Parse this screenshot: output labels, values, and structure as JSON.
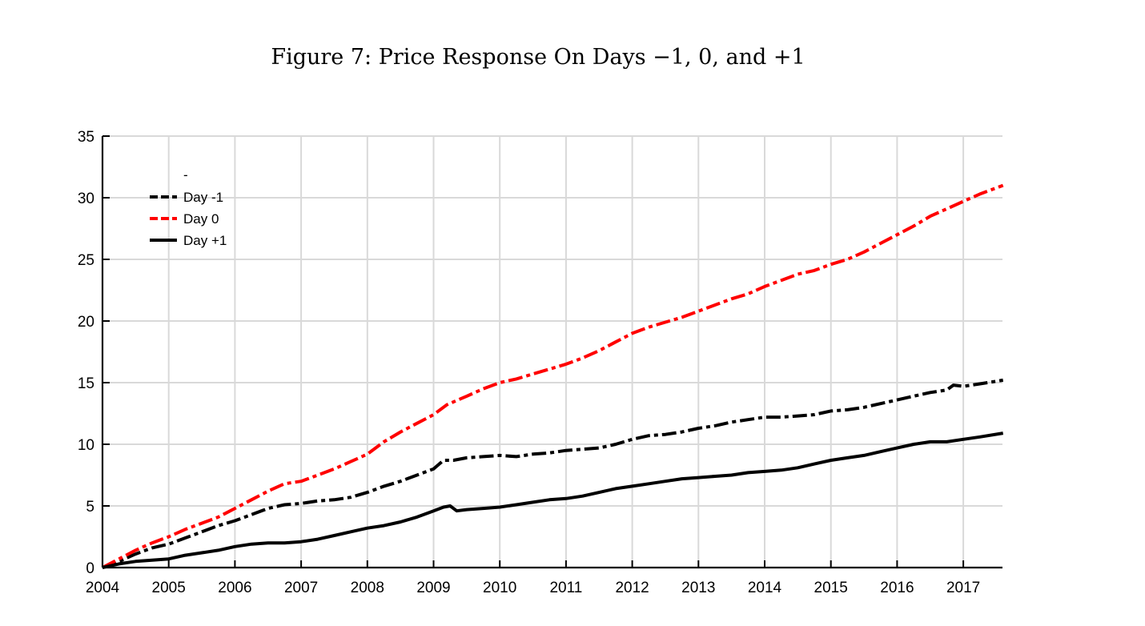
{
  "figure": {
    "title": "Figure 7: Price Response On Days −1, 0, and +1"
  },
  "chart_data": {
    "type": "line",
    "title": "Figure 7: Price Response On Days −1, 0, and +1",
    "xlabel": "",
    "ylabel": "",
    "xlim": [
      2004,
      2017.6
    ],
    "ylim": [
      0,
      35
    ],
    "xticks": [
      2004,
      2005,
      2006,
      2007,
      2008,
      2009,
      2010,
      2011,
      2012,
      2013,
      2014,
      2015,
      2016,
      2017
    ],
    "yticks": [
      0,
      5,
      10,
      15,
      20,
      25,
      30,
      35
    ],
    "grid": true,
    "legend_position": "top-left",
    "legend_header": "-",
    "series": [
      {
        "name": "Day -1",
        "color": "#000000",
        "style": "dash-dot",
        "x": [
          2004,
          2004.25,
          2004.5,
          2004.75,
          2005,
          2005.25,
          2005.5,
          2005.75,
          2006,
          2006.25,
          2006.5,
          2006.75,
          2007,
          2007.25,
          2007.5,
          2007.75,
          2008,
          2008.25,
          2008.5,
          2008.75,
          2009,
          2009.15,
          2009.3,
          2009.5,
          2009.75,
          2010,
          2010.25,
          2010.5,
          2010.75,
          2011,
          2011.25,
          2011.5,
          2011.75,
          2012,
          2012.25,
          2012.5,
          2012.75,
          2013,
          2013.25,
          2013.5,
          2013.75,
          2014,
          2014.25,
          2014.5,
          2014.75,
          2015,
          2015.25,
          2015.5,
          2015.75,
          2016,
          2016.25,
          2016.5,
          2016.75,
          2016.85,
          2017,
          2017.25,
          2017.6
        ],
        "y": [
          0,
          0.5,
          1.1,
          1.6,
          1.9,
          2.4,
          2.9,
          3.4,
          3.8,
          4.3,
          4.8,
          5.1,
          5.2,
          5.4,
          5.5,
          5.7,
          6.1,
          6.6,
          7.0,
          7.5,
          8.0,
          8.7,
          8.7,
          8.9,
          9.0,
          9.1,
          9.0,
          9.2,
          9.3,
          9.5,
          9.6,
          9.7,
          10.0,
          10.4,
          10.7,
          10.8,
          11.0,
          11.3,
          11.5,
          11.8,
          12.0,
          12.2,
          12.2,
          12.3,
          12.4,
          12.7,
          12.8,
          13.0,
          13.3,
          13.6,
          13.9,
          14.2,
          14.4,
          14.8,
          14.7,
          14.9,
          15.2
        ]
      },
      {
        "name": "Day 0",
        "color": "#ff0000",
        "style": "dash-dot",
        "x": [
          2004,
          2004.25,
          2004.5,
          2004.75,
          2005,
          2005.25,
          2005.5,
          2005.75,
          2006,
          2006.25,
          2006.5,
          2006.75,
          2007,
          2007.25,
          2007.5,
          2007.75,
          2008,
          2008.25,
          2008.5,
          2008.75,
          2009,
          2009.2,
          2009.5,
          2009.75,
          2010,
          2010.25,
          2010.5,
          2010.75,
          2011,
          2011.25,
          2011.5,
          2011.75,
          2012,
          2012.25,
          2012.5,
          2012.75,
          2013,
          2013.25,
          2013.5,
          2013.75,
          2014,
          2014.25,
          2014.5,
          2014.75,
          2015,
          2015.25,
          2015.5,
          2015.75,
          2016,
          2016.25,
          2016.5,
          2016.75,
          2017,
          2017.25,
          2017.6
        ],
        "y": [
          0,
          0.7,
          1.4,
          2.0,
          2.5,
          3.1,
          3.6,
          4.1,
          4.8,
          5.5,
          6.2,
          6.8,
          7.0,
          7.5,
          8.0,
          8.6,
          9.2,
          10.2,
          11.0,
          11.7,
          12.4,
          13.2,
          13.9,
          14.5,
          15.0,
          15.3,
          15.7,
          16.1,
          16.5,
          17.0,
          17.6,
          18.3,
          19.0,
          19.5,
          19.9,
          20.3,
          20.8,
          21.3,
          21.8,
          22.2,
          22.8,
          23.3,
          23.8,
          24.1,
          24.6,
          25.0,
          25.6,
          26.3,
          27.0,
          27.7,
          28.5,
          29.1,
          29.7,
          30.3,
          31.0
        ]
      },
      {
        "name": "Day +1",
        "color": "#000000",
        "style": "solid",
        "x": [
          2004,
          2004.25,
          2004.5,
          2004.75,
          2005,
          2005.25,
          2005.5,
          2005.75,
          2006,
          2006.25,
          2006.5,
          2006.75,
          2007,
          2007.25,
          2007.5,
          2007.75,
          2008,
          2008.25,
          2008.5,
          2008.75,
          2009,
          2009.15,
          2009.25,
          2009.35,
          2009.5,
          2009.75,
          2010,
          2010.25,
          2010.5,
          2010.75,
          2011,
          2011.25,
          2011.5,
          2011.75,
          2012,
          2012.25,
          2012.5,
          2012.75,
          2013,
          2013.25,
          2013.5,
          2013.75,
          2014,
          2014.25,
          2014.5,
          2014.75,
          2015,
          2015.25,
          2015.5,
          2015.75,
          2016,
          2016.25,
          2016.5,
          2016.75,
          2017,
          2017.25,
          2017.6
        ],
        "y": [
          0,
          0.3,
          0.5,
          0.6,
          0.7,
          1.0,
          1.2,
          1.4,
          1.7,
          1.9,
          2.0,
          2.0,
          2.1,
          2.3,
          2.6,
          2.9,
          3.2,
          3.4,
          3.7,
          4.1,
          4.6,
          4.9,
          5.0,
          4.6,
          4.7,
          4.8,
          4.9,
          5.1,
          5.3,
          5.5,
          5.6,
          5.8,
          6.1,
          6.4,
          6.6,
          6.8,
          7.0,
          7.2,
          7.3,
          7.4,
          7.5,
          7.7,
          7.8,
          7.9,
          8.1,
          8.4,
          8.7,
          8.9,
          9.1,
          9.4,
          9.7,
          10.0,
          10.2,
          10.2,
          10.4,
          10.6,
          10.9
        ]
      }
    ]
  }
}
